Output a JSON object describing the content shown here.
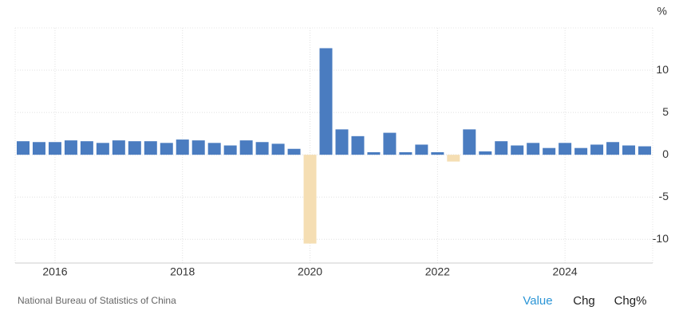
{
  "chart_data": {
    "type": "bar",
    "y_label": "%",
    "categories": [
      null,
      null,
      "2016",
      null,
      null,
      null,
      null,
      null,
      null,
      null,
      "2018",
      null,
      null,
      null,
      null,
      null,
      null,
      null,
      "2020",
      null,
      null,
      null,
      null,
      null,
      null,
      null,
      "2022",
      null,
      null,
      null,
      null,
      null,
      null,
      null,
      "2024",
      null,
      null,
      null,
      null,
      null
    ],
    "values": [
      1.6,
      1.5,
      1.5,
      1.7,
      1.6,
      1.4,
      1.7,
      1.6,
      1.6,
      1.4,
      1.8,
      1.7,
      1.4,
      1.1,
      1.7,
      1.5,
      1.3,
      0.7,
      -10.5,
      12.6,
      3.0,
      2.2,
      0.3,
      2.6,
      0.3,
      1.2,
      0.3,
      -0.8,
      3.0,
      0.4,
      1.6,
      1.1,
      1.4,
      0.8,
      1.4,
      0.8,
      1.2,
      1.5,
      1.1,
      1.0
    ],
    "color": "#4a7cc0",
    "negative_color": "#f5deb3",
    "ylim": [
      -12.8,
      15
    ],
    "yticks": [
      -10,
      -5,
      0,
      5,
      10
    ],
    "grid": true
  },
  "footer": {
    "source": "National Bureau of Statistics of China",
    "buttons": [
      "Value",
      "Chg",
      "Chg%"
    ],
    "active_button": 0
  }
}
